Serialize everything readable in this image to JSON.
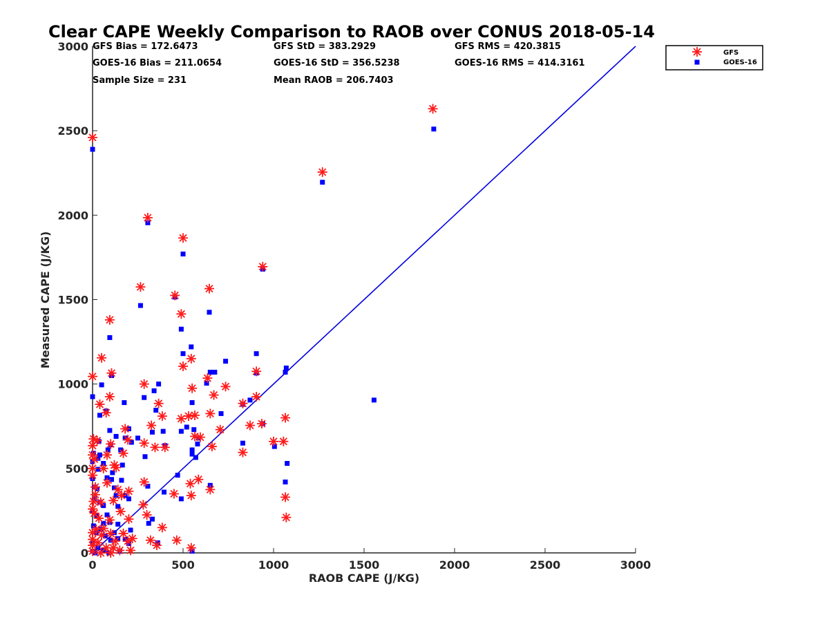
{
  "chart_data": {
    "type": "scatter",
    "title": "Clear CAPE Weekly Comparison to RAOB over CONUS 2018-05-14",
    "xlabel": "RAOB CAPE (J/KG)",
    "ylabel": "Measured CAPE (J/KG)",
    "xlim": [
      0,
      3000
    ],
    "ylim": [
      0,
      3000
    ],
    "xticks": [
      0,
      500,
      1000,
      1500,
      2000,
      2500,
      3000
    ],
    "yticks": [
      0,
      500,
      1000,
      1500,
      2000,
      2500,
      3000
    ],
    "grid": false,
    "legend_position": "top-right",
    "stats": [
      "GFS Bias = 172.6473",
      "GOES-16 Bias = 211.0654",
      "Sample Size = 231",
      "GFS StD = 383.2929",
      "GOES-16 StD = 356.5238",
      "Mean RAOB = 206.7403",
      "GFS RMS = 420.3815",
      "GOES-16 RMS = 414.3161"
    ],
    "reference_line": {
      "x": [
        0,
        3000
      ],
      "y": [
        0,
        3000
      ],
      "color": "#0000e0"
    },
    "series": [
      {
        "name": "GFS",
        "marker": "asterisk",
        "color": "#ff1a1a",
        "points": [
          [
            0,
            2460
          ],
          [
            1880,
            2630
          ],
          [
            1270,
            2255
          ],
          [
            305,
            1985
          ],
          [
            500,
            1865
          ],
          [
            940,
            1695
          ],
          [
            265,
            1575
          ],
          [
            645,
            1565
          ],
          [
            455,
            1525
          ],
          [
            490,
            1415
          ],
          [
            95,
            1380
          ],
          [
            545,
            1150
          ],
          [
            500,
            1105
          ],
          [
            50,
            1155
          ],
          [
            105,
            1065
          ],
          [
            0,
            1045
          ],
          [
            635,
            1035
          ],
          [
            905,
            1075
          ],
          [
            285,
            1000
          ],
          [
            735,
            985
          ],
          [
            550,
            975
          ],
          [
            670,
            935
          ],
          [
            95,
            925
          ],
          [
            905,
            925
          ],
          [
            40,
            880
          ],
          [
            365,
            885
          ],
          [
            830,
            885
          ],
          [
            75,
            830
          ],
          [
            385,
            810
          ],
          [
            650,
            825
          ],
          [
            490,
            795
          ],
          [
            530,
            810
          ],
          [
            565,
            815
          ],
          [
            1065,
            800
          ],
          [
            870,
            755
          ],
          [
            325,
            755
          ],
          [
            705,
            730
          ],
          [
            935,
            765
          ],
          [
            180,
            735
          ],
          [
            195,
            670
          ],
          [
            565,
            690
          ],
          [
            595,
            685
          ],
          [
            5,
            675
          ],
          [
            25,
            665
          ],
          [
            1000,
            660
          ],
          [
            1055,
            660
          ],
          [
            0,
            635
          ],
          [
            285,
            650
          ],
          [
            345,
            625
          ],
          [
            400,
            625
          ],
          [
            660,
            630
          ],
          [
            100,
            645
          ],
          [
            80,
            580
          ],
          [
            170,
            590
          ],
          [
            830,
            595
          ],
          [
            0,
            580
          ],
          [
            10,
            555
          ],
          [
            120,
            520
          ],
          [
            130,
            505
          ],
          [
            0,
            500
          ],
          [
            0,
            460
          ],
          [
            585,
            435
          ],
          [
            540,
            410
          ],
          [
            285,
            420
          ],
          [
            650,
            375
          ],
          [
            450,
            350
          ],
          [
            545,
            340
          ],
          [
            1065,
            330
          ],
          [
            280,
            285
          ],
          [
            200,
            365
          ],
          [
            140,
            375
          ],
          [
            160,
            340
          ],
          [
            115,
            310
          ],
          [
            45,
            300
          ],
          [
            15,
            345
          ],
          [
            0,
            260
          ],
          [
            10,
            235
          ],
          [
            155,
            245
          ],
          [
            300,
            225
          ],
          [
            95,
            195
          ],
          [
            200,
            200
          ],
          [
            1070,
            210
          ],
          [
            385,
            150
          ],
          [
            60,
            145
          ],
          [
            20,
            140
          ],
          [
            0,
            120
          ],
          [
            100,
            115
          ],
          [
            170,
            115
          ],
          [
            320,
            75
          ],
          [
            465,
            75
          ],
          [
            355,
            45
          ],
          [
            0,
            45
          ],
          [
            30,
            60
          ],
          [
            75,
            30
          ],
          [
            115,
            30
          ],
          [
            150,
            15
          ],
          [
            210,
            15
          ],
          [
            545,
            30
          ],
          [
            0,
            10
          ],
          [
            45,
            0
          ],
          [
            100,
            0
          ],
          [
            0,
            80
          ],
          [
            125,
            70
          ],
          [
            195,
            70
          ],
          [
            50,
            105
          ],
          [
            220,
            85
          ],
          [
            80,
            415
          ],
          [
            35,
            205
          ],
          [
            60,
            500
          ],
          [
            15,
            390
          ],
          [
            5,
            305
          ]
        ]
      },
      {
        "name": "GOES-16",
        "marker": "square",
        "color": "#0000ff",
        "points": [
          [
            0,
            2390
          ],
          [
            1885,
            2510
          ],
          [
            1270,
            2195
          ],
          [
            305,
            1955
          ],
          [
            500,
            1770
          ],
          [
            940,
            1680
          ],
          [
            265,
            1465
          ],
          [
            645,
            1425
          ],
          [
            455,
            1515
          ],
          [
            490,
            1325
          ],
          [
            95,
            1275
          ],
          [
            545,
            1220
          ],
          [
            500,
            1180
          ],
          [
            905,
            1180
          ],
          [
            735,
            1135
          ],
          [
            105,
            1050
          ],
          [
            650,
            1070
          ],
          [
            675,
            1070
          ],
          [
            1070,
            1095
          ],
          [
            1065,
            1070
          ],
          [
            905,
            1065
          ],
          [
            630,
            1005
          ],
          [
            365,
            1000
          ],
          [
            50,
            995
          ],
          [
            340,
            960
          ],
          [
            0,
            925
          ],
          [
            285,
            920
          ],
          [
            550,
            890
          ],
          [
            870,
            905
          ],
          [
            175,
            890
          ],
          [
            830,
            880
          ],
          [
            1555,
            905
          ],
          [
            75,
            840
          ],
          [
            350,
            845
          ],
          [
            40,
            815
          ],
          [
            710,
            825
          ],
          [
            200,
            735
          ],
          [
            330,
            715
          ],
          [
            390,
            720
          ],
          [
            490,
            720
          ],
          [
            520,
            745
          ],
          [
            560,
            730
          ],
          [
            940,
            765
          ],
          [
            95,
            725
          ],
          [
            130,
            690
          ],
          [
            180,
            680
          ],
          [
            250,
            680
          ],
          [
            585,
            680
          ],
          [
            100,
            640
          ],
          [
            215,
            655
          ],
          [
            400,
            635
          ],
          [
            580,
            645
          ],
          [
            830,
            650
          ],
          [
            1005,
            630
          ],
          [
            35,
            660
          ],
          [
            155,
            610
          ],
          [
            550,
            610
          ],
          [
            85,
            610
          ],
          [
            5,
            590
          ],
          [
            290,
            570
          ],
          [
            550,
            585
          ],
          [
            570,
            565
          ],
          [
            0,
            540
          ],
          [
            40,
            580
          ],
          [
            1075,
            530
          ],
          [
            60,
            530
          ],
          [
            165,
            520
          ],
          [
            30,
            495
          ],
          [
            470,
            460
          ],
          [
            0,
            440
          ],
          [
            80,
            445
          ],
          [
            105,
            435
          ],
          [
            160,
            430
          ],
          [
            1065,
            420
          ],
          [
            650,
            400
          ],
          [
            305,
            395
          ],
          [
            25,
            380
          ],
          [
            10,
            390
          ],
          [
            120,
            385
          ],
          [
            180,
            340
          ],
          [
            395,
            360
          ],
          [
            490,
            320
          ],
          [
            130,
            340
          ],
          [
            200,
            320
          ],
          [
            10,
            320
          ],
          [
            40,
            300
          ],
          [
            60,
            280
          ],
          [
            140,
            275
          ],
          [
            0,
            250
          ],
          [
            20,
            220
          ],
          [
            80,
            225
          ],
          [
            95,
            180
          ],
          [
            140,
            170
          ],
          [
            310,
            175
          ],
          [
            330,
            200
          ],
          [
            210,
            135
          ],
          [
            20,
            120
          ],
          [
            45,
            140
          ],
          [
            70,
            100
          ],
          [
            100,
            75
          ],
          [
            140,
            85
          ],
          [
            180,
            80
          ],
          [
            200,
            55
          ],
          [
            360,
            60
          ],
          [
            0,
            60
          ],
          [
            30,
            30
          ],
          [
            60,
            15
          ],
          [
            150,
            10
          ],
          [
            550,
            10
          ],
          [
            0,
            10
          ],
          [
            15,
            0
          ],
          [
            90,
            0
          ],
          [
            120,
            120
          ],
          [
            5,
            160
          ],
          [
            60,
            175
          ],
          [
            30,
            560
          ],
          [
            110,
            475
          ]
        ]
      }
    ]
  }
}
